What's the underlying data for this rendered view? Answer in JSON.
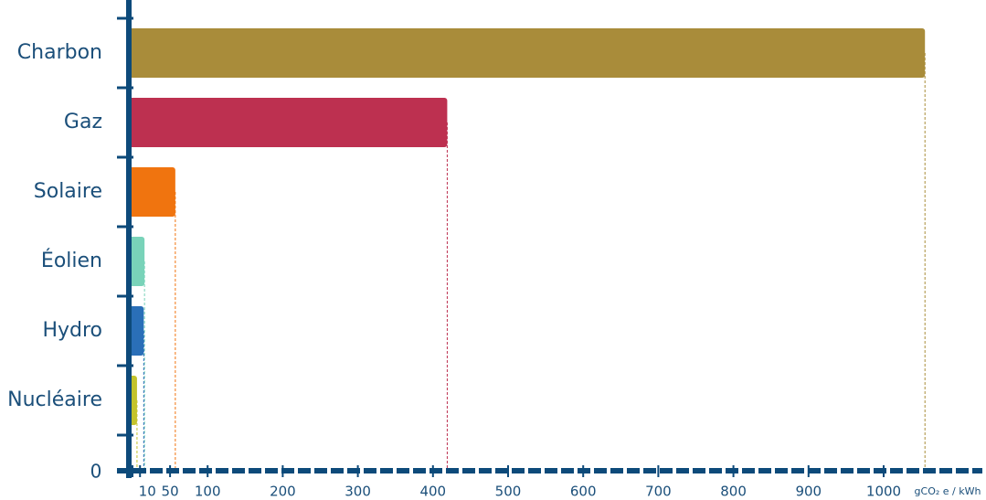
{
  "chart_data": {
    "type": "bar",
    "orientation": "horizontal",
    "categories": [
      "Charbon",
      "Gaz",
      "Solaire",
      "Éolien",
      "Hydro",
      "Nucléaire"
    ],
    "values": [
      1055,
      419,
      57,
      16,
      15,
      6
    ],
    "colors": [
      "#a98c3a",
      "#bd3050",
      "#f0740f",
      "#79d3b9",
      "#2a6fb8",
      "#c3c32c"
    ],
    "xlim": [
      0,
      1100
    ],
    "xticks": [
      0,
      10,
      50,
      100,
      200,
      300,
      400,
      500,
      600,
      700,
      800,
      900,
      1000
    ],
    "x_label": "gCO₂ e / kWh",
    "axis_color": "#0d4a7a"
  }
}
